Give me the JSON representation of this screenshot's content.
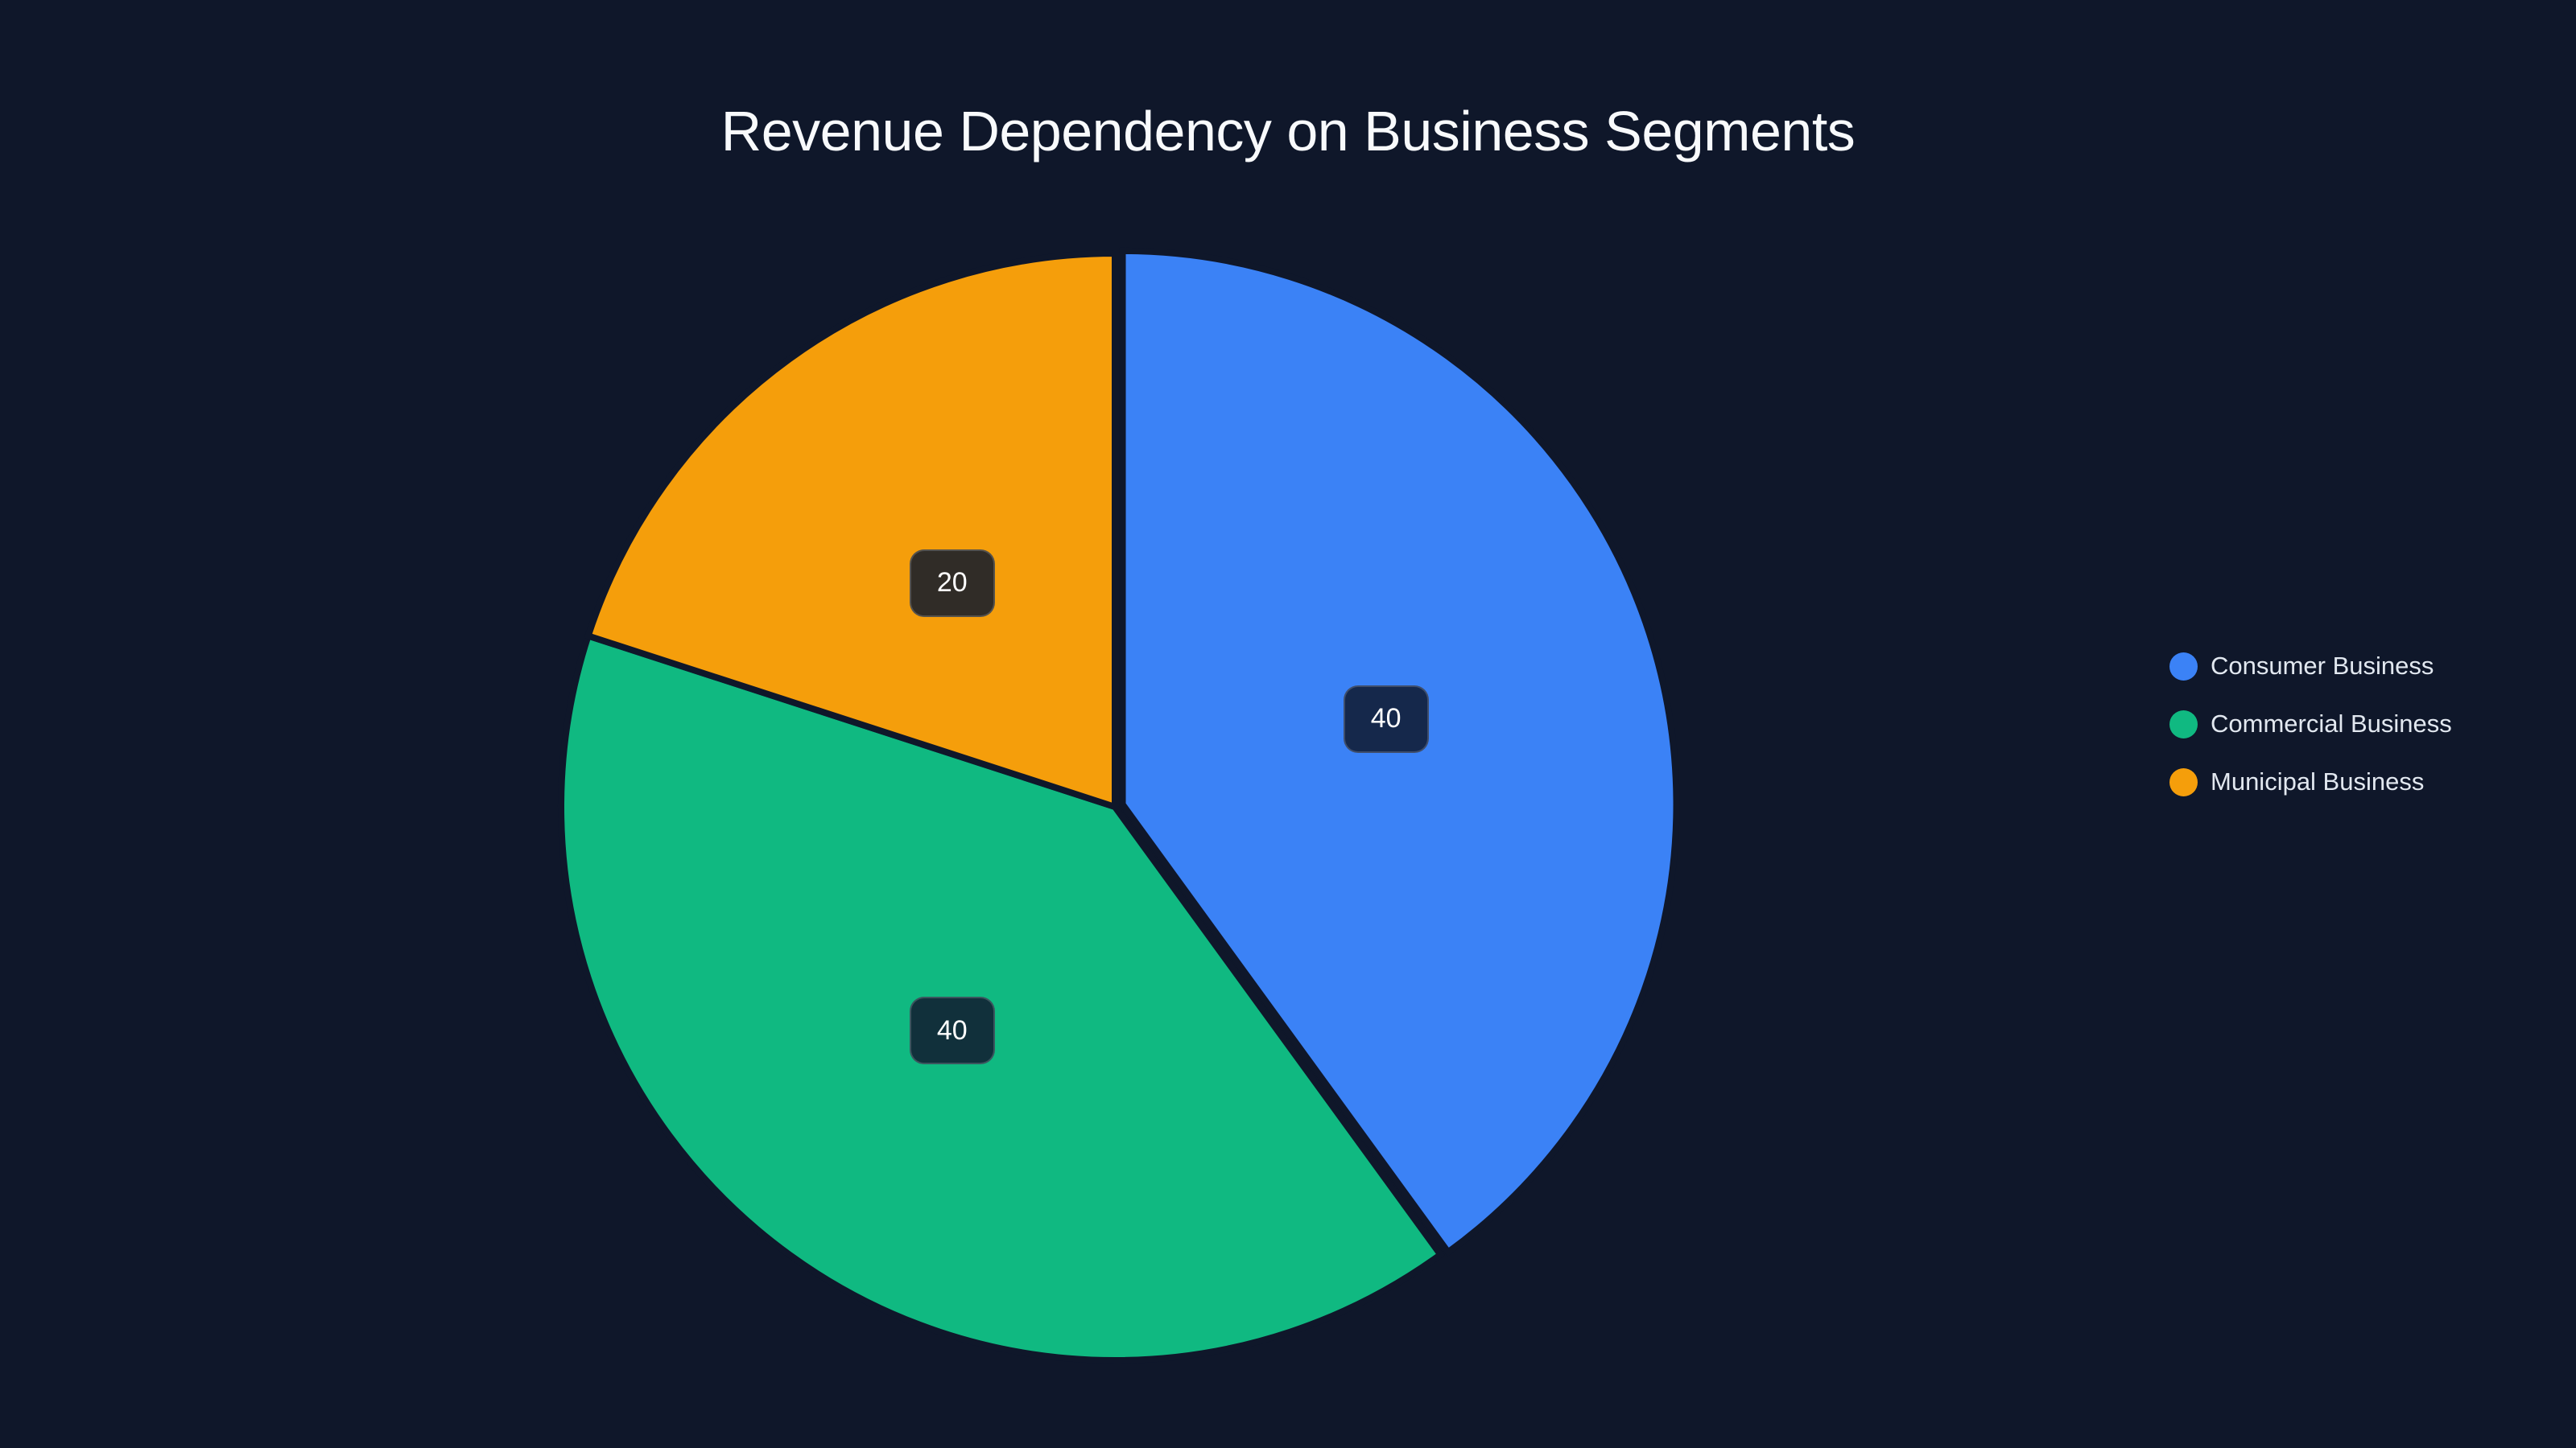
{
  "title": "Revenue Dependency on Business Segments",
  "colors": {
    "background": "#0f172a",
    "consumer": "#3b82f6",
    "commercial": "#10b981",
    "municipal": "#f59e0b"
  },
  "legend": {
    "items": [
      {
        "label": "Consumer Business",
        "color": "#3b82f6"
      },
      {
        "label": "Commercial Business",
        "color": "#10b981"
      },
      {
        "label": "Municipal Business",
        "color": "#f59e0b"
      }
    ]
  },
  "labels": [
    {
      "text": "40",
      "bg": "#15284b"
    },
    {
      "text": "40",
      "bg": "#11303b"
    },
    {
      "text": "20",
      "bg": "#302c27"
    }
  ],
  "chart_data": {
    "type": "pie",
    "title": "Revenue Dependency on Business Segments",
    "categories": [
      "Consumer Business",
      "Commercial Business",
      "Municipal Business"
    ],
    "values": [
      40,
      40,
      20
    ],
    "colors": [
      "#3b82f6",
      "#10b981",
      "#f59e0b"
    ],
    "start_angle_deg": 0,
    "direction": "clockwise",
    "exploded": [
      "Consumer Business"
    ],
    "data_labels": true,
    "legend_position": "right"
  }
}
